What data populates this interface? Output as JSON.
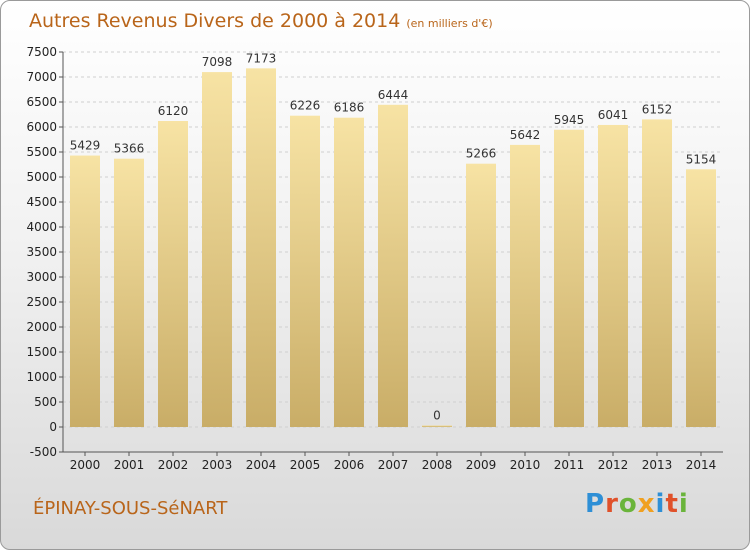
{
  "header": {
    "title": "Autres Revenus Divers de 2000 à 2014",
    "unit": "(en milliers d'€)"
  },
  "footer": {
    "city": "ÉPINAY-SOUS-SéNART",
    "brand": "Proxiti"
  },
  "colors": {
    "accent": "#b9651a",
    "bar_light": "#f7e3a4",
    "bar_dark": "#c9ad67"
  },
  "chart_data": {
    "type": "bar",
    "categories": [
      "2000",
      "2001",
      "2002",
      "2003",
      "2004",
      "2005",
      "2006",
      "2007",
      "2008",
      "2009",
      "2010",
      "2011",
      "2012",
      "2013",
      "2014"
    ],
    "values": [
      5429,
      5366,
      6120,
      7098,
      7173,
      6226,
      6186,
      6444,
      0,
      5266,
      5642,
      5945,
      6041,
      6152,
      5154
    ],
    "title": "Autres Revenus Divers de 2000 à 2014",
    "xlabel": "",
    "ylabel": "",
    "ylim": [
      -500,
      7500
    ],
    "yticks": [
      -500,
      0,
      500,
      1000,
      1500,
      2000,
      2500,
      3000,
      3500,
      4000,
      4500,
      5000,
      5500,
      6000,
      6500,
      7000,
      7500
    ],
    "grid": true
  }
}
